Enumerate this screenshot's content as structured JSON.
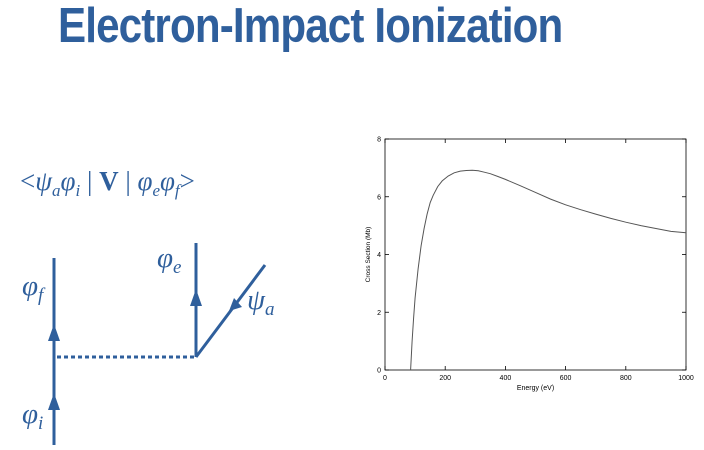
{
  "title": "Electron-Impact Ionization",
  "matrix_element": {
    "open": "<",
    "psi": "ψ",
    "psi_sub": "a",
    "phi1": "φ",
    "phi1_sub": "i",
    "bar1": " | ",
    "operator": "V",
    "bar2": " | ",
    "phi2": "φ",
    "phi2_sub": "e",
    "phi3": "φ",
    "phi3_sub": "f",
    "close": ">"
  },
  "diagram": {
    "phi_f": {
      "symbol": "φ",
      "sub": "f"
    },
    "phi_i": {
      "symbol": "φ",
      "sub": "i"
    },
    "phi_e": {
      "symbol": "φ",
      "sub": "e"
    },
    "psi_a": {
      "symbol": "ψ",
      "sub": "a"
    },
    "color": "#2f5f9c"
  },
  "chart_data": {
    "type": "line",
    "xlabel": "Energy (eV)",
    "ylabel": "Cross Section (Mb)",
    "xlim": [
      0,
      1000
    ],
    "ylim": [
      0,
      8
    ],
    "xticks": [
      0,
      200,
      400,
      600,
      800,
      1000
    ],
    "yticks": [
      0,
      2,
      4,
      6,
      8
    ],
    "grid": false,
    "series": [
      {
        "x": [
          85,
          90,
          95,
          100,
          110,
          120,
          130,
          140,
          150,
          160,
          175,
          190,
          210,
          230,
          250,
          270,
          290,
          310,
          330,
          350,
          375,
          400,
          450,
          500,
          550,
          600,
          650,
          700,
          750,
          800,
          850,
          900,
          950,
          1000
        ],
        "y": [
          0,
          1.0,
          1.8,
          2.5,
          3.5,
          4.3,
          4.9,
          5.4,
          5.8,
          6.05,
          6.35,
          6.55,
          6.72,
          6.83,
          6.89,
          6.91,
          6.92,
          6.9,
          6.85,
          6.8,
          6.7,
          6.6,
          6.38,
          6.15,
          5.92,
          5.72,
          5.55,
          5.4,
          5.25,
          5.12,
          5.0,
          4.9,
          4.8,
          4.75
        ],
        "color": "#555555"
      }
    ]
  }
}
